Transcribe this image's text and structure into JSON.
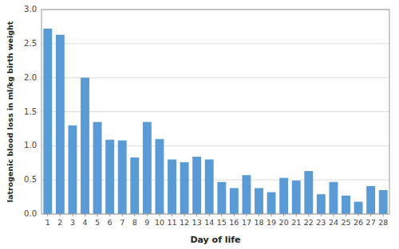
{
  "chart_data": {
    "type": "bar",
    "categories": [
      "1",
      "2",
      "3",
      "4",
      "5",
      "6",
      "7",
      "8",
      "9",
      "10",
      "11",
      "12",
      "13",
      "14",
      "15",
      "16",
      "17",
      "18",
      "19",
      "20",
      "21",
      "22",
      "23",
      "24",
      "25",
      "26",
      "27",
      "28"
    ],
    "values": [
      2.72,
      2.63,
      1.3,
      2.0,
      1.35,
      1.09,
      1.08,
      0.83,
      1.35,
      1.1,
      0.8,
      0.76,
      0.84,
      0.8,
      0.47,
      0.38,
      0.57,
      0.38,
      0.32,
      0.53,
      0.49,
      0.63,
      0.29,
      0.47,
      0.27,
      0.18,
      0.41,
      0.35
    ],
    "color": "#5B9BD5",
    "x_label": "Day of life",
    "y_label": "Iatrogenic blood loss in ml/kg birth weight",
    "ylim": [
      0.0,
      3.0
    ],
    "yticks": [
      {
        "value": 0.0,
        "label": "0.0"
      },
      0.5,
      {
        "value": 1.0,
        "label": "1.0"
      },
      1.5,
      {
        "value": 2.0,
        "label": "2.0"
      },
      2.5,
      {
        "value": 3.0,
        "label": "3.0"
      }
    ],
    "grid": true
  }
}
